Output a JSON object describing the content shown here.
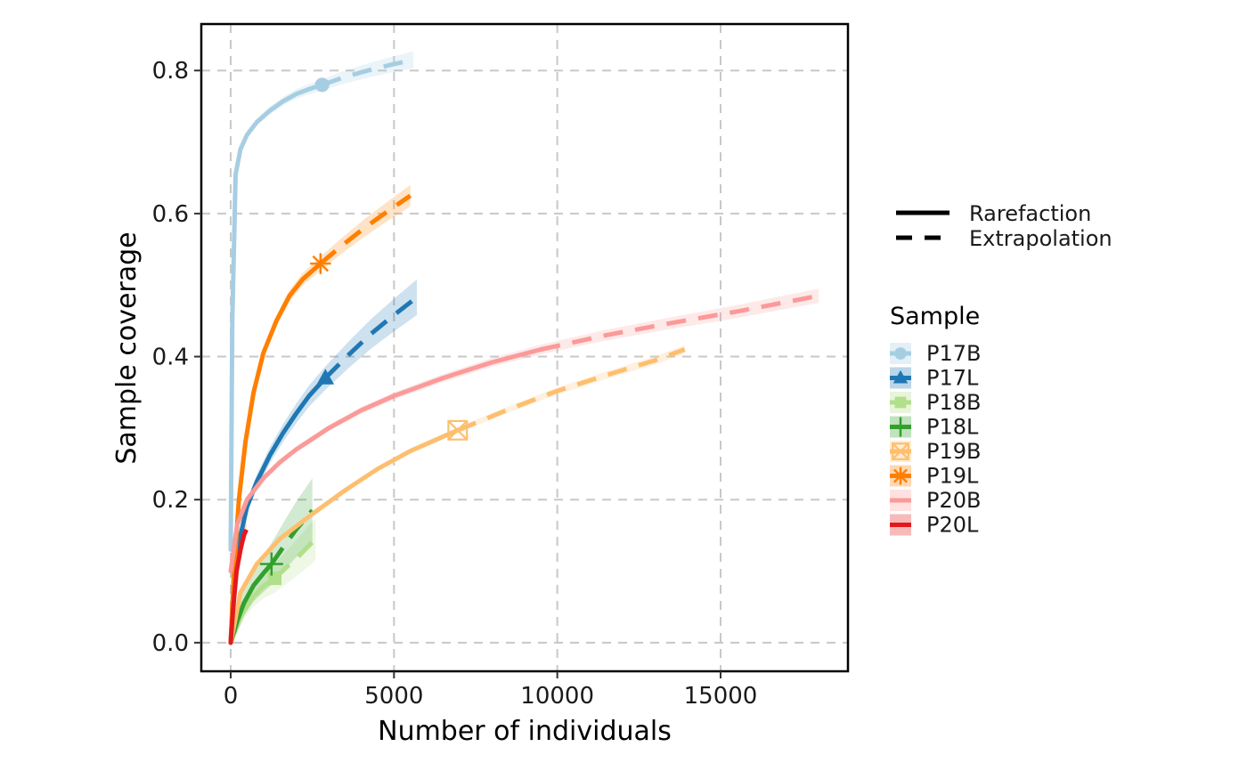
{
  "chart_data": {
    "type": "line",
    "title": "",
    "xlabel": "Number of individuals",
    "ylabel": "Sample coverage",
    "xlim": [
      -900,
      18900
    ],
    "ylim": [
      -0.04,
      0.865
    ],
    "xticks": [
      0,
      5000,
      10000,
      15000
    ],
    "xtick_labels": [
      "0",
      "5000",
      "10000",
      "15000"
    ],
    "yticks": [
      0.0,
      0.2,
      0.4,
      0.6,
      0.8
    ],
    "ytick_labels": [
      "0.0",
      "0.2",
      "0.4",
      "0.6",
      "0.8"
    ],
    "grid": true,
    "legend_placement": "right",
    "method_legend": [
      {
        "label": "Rarefaction",
        "style": "solid"
      },
      {
        "label": "Extrapolation",
        "style": "dashed"
      }
    ],
    "sample_legend_title": "Sample",
    "series": [
      {
        "name": "P17B",
        "color": "#a6cee3",
        "marker": "circle",
        "observed": [
          2800,
          0.78
        ],
        "rarefaction": [
          [
            0,
            0.13
          ],
          [
            50,
            0.45
          ],
          [
            150,
            0.655
          ],
          [
            300,
            0.69
          ],
          [
            500,
            0.71
          ],
          [
            800,
            0.728
          ],
          [
            1200,
            0.744
          ],
          [
            1600,
            0.757
          ],
          [
            2000,
            0.767
          ],
          [
            2400,
            0.774
          ],
          [
            2800,
            0.78
          ]
        ],
        "extrapolation": [
          [
            2800,
            0.78
          ],
          [
            3500,
            0.791
          ],
          [
            4200,
            0.8
          ],
          [
            4900,
            0.808
          ],
          [
            5600,
            0.815
          ]
        ],
        "band": 0.012
      },
      {
        "name": "P17L",
        "color": "#1f78b4",
        "marker": "triangle",
        "observed": [
          2900,
          0.37
        ],
        "rarefaction": [
          [
            0,
            0.0
          ],
          [
            100,
            0.09
          ],
          [
            250,
            0.14
          ],
          [
            500,
            0.19
          ],
          [
            800,
            0.225
          ],
          [
            1200,
            0.262
          ],
          [
            1600,
            0.293
          ],
          [
            2000,
            0.32
          ],
          [
            2400,
            0.345
          ],
          [
            2900,
            0.37
          ]
        ],
        "extrapolation": [
          [
            2900,
            0.37
          ],
          [
            3600,
            0.402
          ],
          [
            4300,
            0.432
          ],
          [
            5000,
            0.458
          ],
          [
            5700,
            0.483
          ]
        ],
        "band": 0.025
      },
      {
        "name": "P18B",
        "color": "#b2df8a",
        "marker": "square",
        "observed": [
          1350,
          0.09
        ],
        "rarefaction": [
          [
            0,
            0.0
          ],
          [
            200,
            0.025
          ],
          [
            400,
            0.045
          ],
          [
            700,
            0.065
          ],
          [
            1000,
            0.079
          ],
          [
            1350,
            0.09
          ]
        ],
        "extrapolation": [
          [
            1350,
            0.09
          ],
          [
            1700,
            0.105
          ],
          [
            2100,
            0.122
          ],
          [
            2600,
            0.145
          ]
        ],
        "band": 0.03
      },
      {
        "name": "P18L",
        "color": "#33a02c",
        "marker": "cross",
        "observed": [
          1250,
          0.11
        ],
        "rarefaction": [
          [
            0,
            0.0
          ],
          [
            200,
            0.03
          ],
          [
            400,
            0.055
          ],
          [
            700,
            0.08
          ],
          [
            1000,
            0.097
          ],
          [
            1250,
            0.11
          ]
        ],
        "extrapolation": [
          [
            1250,
            0.11
          ],
          [
            1600,
            0.133
          ],
          [
            2000,
            0.158
          ],
          [
            2500,
            0.185
          ]
        ],
        "band": 0.045
      },
      {
        "name": "P19B",
        "color": "#fdbf6f",
        "marker": "boxcross",
        "observed": [
          6950,
          0.297
        ],
        "rarefaction": [
          [
            0,
            0.0
          ],
          [
            300,
            0.07
          ],
          [
            800,
            0.11
          ],
          [
            1500,
            0.145
          ],
          [
            2500,
            0.18
          ],
          [
            3500,
            0.213
          ],
          [
            4500,
            0.243
          ],
          [
            5500,
            0.268
          ],
          [
            6950,
            0.297
          ]
        ],
        "extrapolation": [
          [
            6950,
            0.297
          ],
          [
            8500,
            0.326
          ],
          [
            10000,
            0.352
          ],
          [
            11500,
            0.374
          ],
          [
            13000,
            0.395
          ],
          [
            13900,
            0.41
          ]
        ],
        "band": 0.006
      },
      {
        "name": "P19L",
        "color": "#ff7f00",
        "marker": "asterisk",
        "observed": [
          2750,
          0.53
        ],
        "rarefaction": [
          [
            0,
            0.0
          ],
          [
            100,
            0.1
          ],
          [
            250,
            0.2
          ],
          [
            450,
            0.28
          ],
          [
            700,
            0.35
          ],
          [
            1000,
            0.405
          ],
          [
            1400,
            0.45
          ],
          [
            1800,
            0.485
          ],
          [
            2200,
            0.508
          ],
          [
            2750,
            0.53
          ]
        ],
        "extrapolation": [
          [
            2750,
            0.53
          ],
          [
            3400,
            0.555
          ],
          [
            4100,
            0.58
          ],
          [
            4800,
            0.603
          ],
          [
            5500,
            0.625
          ]
        ],
        "band": 0.015
      },
      {
        "name": "P20B",
        "color": "#fb9a99",
        "marker": "none",
        "observed": [
          9500,
          0.41
        ],
        "rarefaction": [
          [
            0,
            0.1
          ],
          [
            200,
            0.165
          ],
          [
            500,
            0.2
          ],
          [
            1000,
            0.23
          ],
          [
            1500,
            0.252
          ],
          [
            2000,
            0.27
          ],
          [
            3000,
            0.3
          ],
          [
            4000,
            0.325
          ],
          [
            5000,
            0.345
          ],
          [
            6500,
            0.37
          ],
          [
            8000,
            0.392
          ],
          [
            9500,
            0.41
          ]
        ],
        "extrapolation": [
          [
            9500,
            0.41
          ],
          [
            11500,
            0.43
          ],
          [
            13500,
            0.447
          ],
          [
            15500,
            0.463
          ],
          [
            18000,
            0.485
          ]
        ],
        "band": 0.01
      },
      {
        "name": "P20L",
        "color": "#e31a1c",
        "marker": "none",
        "observed": [
          400,
          0.15
        ],
        "rarefaction": [
          [
            0,
            0.0
          ],
          [
            80,
            0.05
          ],
          [
            180,
            0.1
          ],
          [
            300,
            0.13
          ],
          [
            400,
            0.15
          ]
        ],
        "extrapolation": [
          [
            400,
            0.15
          ],
          [
            480,
            0.158
          ]
        ],
        "band": 0.012
      }
    ]
  }
}
